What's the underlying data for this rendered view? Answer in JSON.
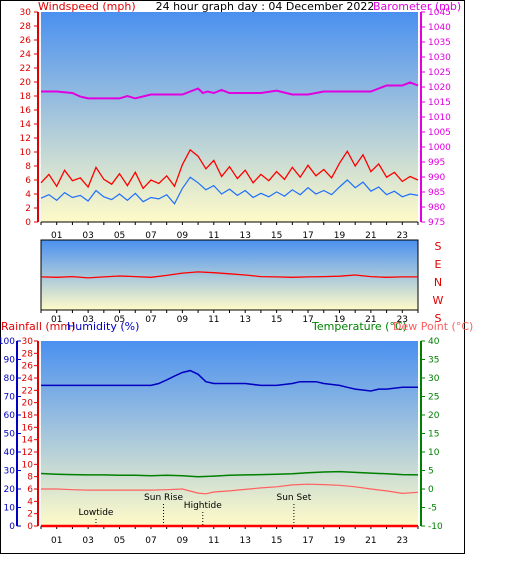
{
  "title": "24 hour graph day : 04 December 2022",
  "colors": {
    "wind_gust": "#ff0000",
    "wind_avg": "#1f6fff",
    "barometer": "#e000e0",
    "wind_dir": "#ff0000",
    "humidity": "#0000c0",
    "temperature": "#008000",
    "dewpoint": "#ff6060",
    "rainfall": "#ff0000",
    "sky_top": "#4a90f0",
    "sky_bottom": "#fffbc8"
  },
  "hour_labels": [
    "01",
    "03",
    "05",
    "07",
    "09",
    "11",
    "13",
    "15",
    "17",
    "19",
    "21",
    "23"
  ],
  "chart_data": [
    {
      "type": "line",
      "name": "wind-and-barometer",
      "left_axis_label": "Windspeed (mph)",
      "right_axis_label": "Barometer (mb)",
      "left_ticks": [
        "0",
        "2",
        "4",
        "6",
        "8",
        "10",
        "12",
        "14",
        "16",
        "18",
        "20",
        "22",
        "24",
        "26",
        "28",
        "30"
      ],
      "right_ticks": [
        "975",
        "980",
        "985",
        "990",
        "995",
        "1000",
        "1005",
        "1010",
        "1015",
        "1020",
        "1025",
        "1030",
        "1035",
        "1040",
        "1045"
      ],
      "left_range": [
        0,
        30
      ],
      "right_range": [
        975,
        1045
      ],
      "x_range": [
        0,
        24
      ],
      "series": [
        {
          "name": "gust",
          "axis": "left",
          "x": [
            0,
            0.5,
            1,
            1.5,
            2,
            2.5,
            3,
            3.5,
            4,
            4.5,
            5,
            5.5,
            6,
            6.5,
            7,
            7.5,
            8,
            8.5,
            9,
            9.5,
            10,
            10.5,
            11,
            11.5,
            12,
            12.5,
            13,
            13.5,
            14,
            14.5,
            15,
            15.5,
            16,
            16.5,
            17,
            17.5,
            18,
            18.5,
            19,
            19.5,
            20,
            20.5,
            21,
            21.5,
            22,
            22.5,
            23,
            23.5,
            24
          ],
          "values": [
            5.6,
            6.8,
            5.1,
            7.4,
            5.9,
            6.3,
            5.0,
            7.8,
            6.1,
            5.4,
            6.9,
            5.2,
            7.1,
            4.8,
            6.0,
            5.5,
            6.6,
            5.1,
            8.2,
            10.3,
            9.4,
            7.6,
            8.8,
            6.5,
            7.9,
            6.2,
            7.4,
            5.6,
            6.8,
            5.9,
            7.2,
            6.1,
            7.8,
            6.4,
            8.1,
            6.6,
            7.5,
            6.3,
            8.4,
            10.1,
            8.0,
            9.6,
            7.2,
            8.3,
            6.4,
            7.1,
            5.8,
            6.5,
            6.0
          ]
        },
        {
          "name": "average",
          "axis": "left",
          "x": [
            0,
            0.5,
            1,
            1.5,
            2,
            2.5,
            3,
            3.5,
            4,
            4.5,
            5,
            5.5,
            6,
            6.5,
            7,
            7.5,
            8,
            8.5,
            9,
            9.5,
            10,
            10.5,
            11,
            11.5,
            12,
            12.5,
            13,
            13.5,
            14,
            14.5,
            15,
            15.5,
            16,
            16.5,
            17,
            17.5,
            18,
            18.5,
            19,
            19.5,
            20,
            20.5,
            21,
            21.5,
            22,
            22.5,
            23,
            23.5,
            24
          ],
          "values": [
            3.4,
            3.9,
            3.1,
            4.2,
            3.5,
            3.8,
            3.0,
            4.5,
            3.6,
            3.2,
            4.0,
            3.1,
            4.1,
            2.9,
            3.5,
            3.3,
            3.9,
            2.6,
            4.8,
            6.4,
            5.6,
            4.6,
            5.2,
            4.0,
            4.7,
            3.8,
            4.5,
            3.5,
            4.1,
            3.6,
            4.3,
            3.7,
            4.6,
            3.9,
            4.9,
            4.0,
            4.5,
            3.9,
            5.0,
            6.0,
            4.9,
            5.7,
            4.4,
            5.0,
            3.9,
            4.4,
            3.6,
            4.0,
            3.8
          ]
        },
        {
          "name": "barometer",
          "axis": "right",
          "x": [
            0,
            1,
            2,
            2.5,
            3,
            3.5,
            4,
            5,
            5.5,
            6,
            7,
            8,
            9,
            9.5,
            10,
            10.3,
            10.6,
            11,
            11.5,
            12,
            13,
            14,
            15,
            16,
            17,
            18,
            19,
            20,
            21,
            21.5,
            22,
            23,
            23.5,
            24
          ],
          "values": [
            1018.5,
            1018.5,
            1018.0,
            1016.8,
            1016.2,
            1016.2,
            1016.2,
            1016.2,
            1017.0,
            1016.2,
            1017.5,
            1017.5,
            1017.5,
            1018.5,
            1019.5,
            1018.0,
            1018.5,
            1018.0,
            1019.0,
            1018.0,
            1018.0,
            1018.0,
            1018.8,
            1017.5,
            1017.5,
            1018.5,
            1018.5,
            1018.5,
            1018.5,
            1019.5,
            1020.5,
            1020.5,
            1021.5,
            1020.5
          ]
        }
      ]
    },
    {
      "type": "line",
      "name": "wind-direction",
      "right_axis_ticks": [
        "S",
        "E",
        "N",
        "W",
        "S"
      ],
      "range_degrees": [
        0,
        360
      ],
      "x_range": [
        0,
        24
      ],
      "series": [
        {
          "name": "direction",
          "x": [
            0,
            1,
            2,
            3,
            4,
            5,
            6,
            7,
            8,
            9,
            10,
            11,
            12,
            13,
            14,
            15,
            16,
            17,
            18,
            19,
            20,
            21,
            22,
            23,
            24
          ],
          "values": [
            170,
            168,
            172,
            165,
            170,
            175,
            172,
            168,
            178,
            190,
            196,
            192,
            186,
            180,
            172,
            170,
            168,
            170,
            172,
            174,
            180,
            172,
            168,
            170,
            170
          ]
        }
      ]
    },
    {
      "type": "line",
      "name": "rain-humidity-temperature",
      "left_axis_label_1": "Rainfall (mm)",
      "left_axis_label_2": "Humidity (%)",
      "right_axis_label_1": "Temperature (°C)",
      "right_axis_label_2": "Dew Point (°C)",
      "rain_ticks": [
        "0",
        "2",
        "4",
        "6",
        "8",
        "10",
        "12",
        "14",
        "16",
        "18",
        "20",
        "22",
        "24",
        "26",
        "28",
        "30"
      ],
      "humidity_ticks": [
        "0",
        "10",
        "20",
        "30",
        "40",
        "50",
        "60",
        "70",
        "80",
        "90",
        "100"
      ],
      "temp_ticks": [
        "-10",
        "-5",
        "0",
        "5",
        "10",
        "15",
        "20",
        "25",
        "30",
        "35",
        "40"
      ],
      "rain_range": [
        0,
        30
      ],
      "humidity_range": [
        0,
        100
      ],
      "temp_range": [
        -10,
        40
      ],
      "x_range": [
        0,
        24
      ],
      "annotations": [
        {
          "label": "Lowtide",
          "x": 3.5
        },
        {
          "label": "Sun Rise",
          "x": 7.8
        },
        {
          "label": "Hightide",
          "x": 10.3
        },
        {
          "label": "Sun Set",
          "x": 16.1
        }
      ],
      "series": [
        {
          "name": "humidity",
          "axis": "humidity",
          "x": [
            0,
            1,
            2,
            3,
            4,
            5,
            6,
            7,
            7.5,
            8,
            8.5,
            9,
            9.5,
            10,
            10.5,
            11,
            12,
            13,
            14,
            15,
            16,
            16.5,
            17,
            17.5,
            18,
            19,
            19.5,
            20,
            21,
            21.5,
            22,
            23,
            24
          ],
          "values": [
            76,
            76,
            76,
            76,
            76,
            76,
            76,
            76,
            77,
            79,
            81,
            83,
            84,
            82,
            78,
            77,
            77,
            77,
            76,
            76,
            77,
            78,
            78,
            78,
            77,
            76,
            75,
            74,
            73,
            74,
            74,
            75,
            75
          ]
        },
        {
          "name": "temperature",
          "axis": "temp",
          "x": [
            0,
            1,
            2,
            3,
            4,
            5,
            6,
            7,
            8,
            9,
            10,
            11,
            12,
            13,
            14,
            15,
            16,
            17,
            18,
            19,
            20,
            21,
            22,
            23,
            24
          ],
          "values": [
            4.2,
            4.0,
            3.9,
            3.8,
            3.8,
            3.7,
            3.7,
            3.6,
            3.7,
            3.6,
            3.3,
            3.5,
            3.7,
            3.8,
            3.9,
            4.0,
            4.1,
            4.4,
            4.6,
            4.7,
            4.5,
            4.3,
            4.1,
            3.9,
            3.8
          ]
        },
        {
          "name": "dew-point",
          "axis": "temp",
          "x": [
            0,
            1,
            2,
            3,
            4,
            5,
            6,
            7,
            8,
            9,
            10,
            10.5,
            11,
            12,
            13,
            14,
            15,
            16,
            17,
            18,
            19,
            20,
            21,
            22,
            23,
            24
          ],
          "values": [
            0.0,
            0.0,
            -0.2,
            -0.3,
            -0.3,
            -0.3,
            -0.3,
            -0.3,
            -0.2,
            0.0,
            -1.1,
            -1.3,
            -0.8,
            -0.5,
            -0.1,
            0.3,
            0.6,
            1.1,
            1.3,
            1.2,
            1.0,
            0.6,
            0.0,
            -0.5,
            -1.2,
            -0.9
          ]
        },
        {
          "name": "rainfall",
          "axis": "rain",
          "x": [
            0,
            24
          ],
          "values": [
            0,
            0
          ]
        }
      ]
    }
  ]
}
